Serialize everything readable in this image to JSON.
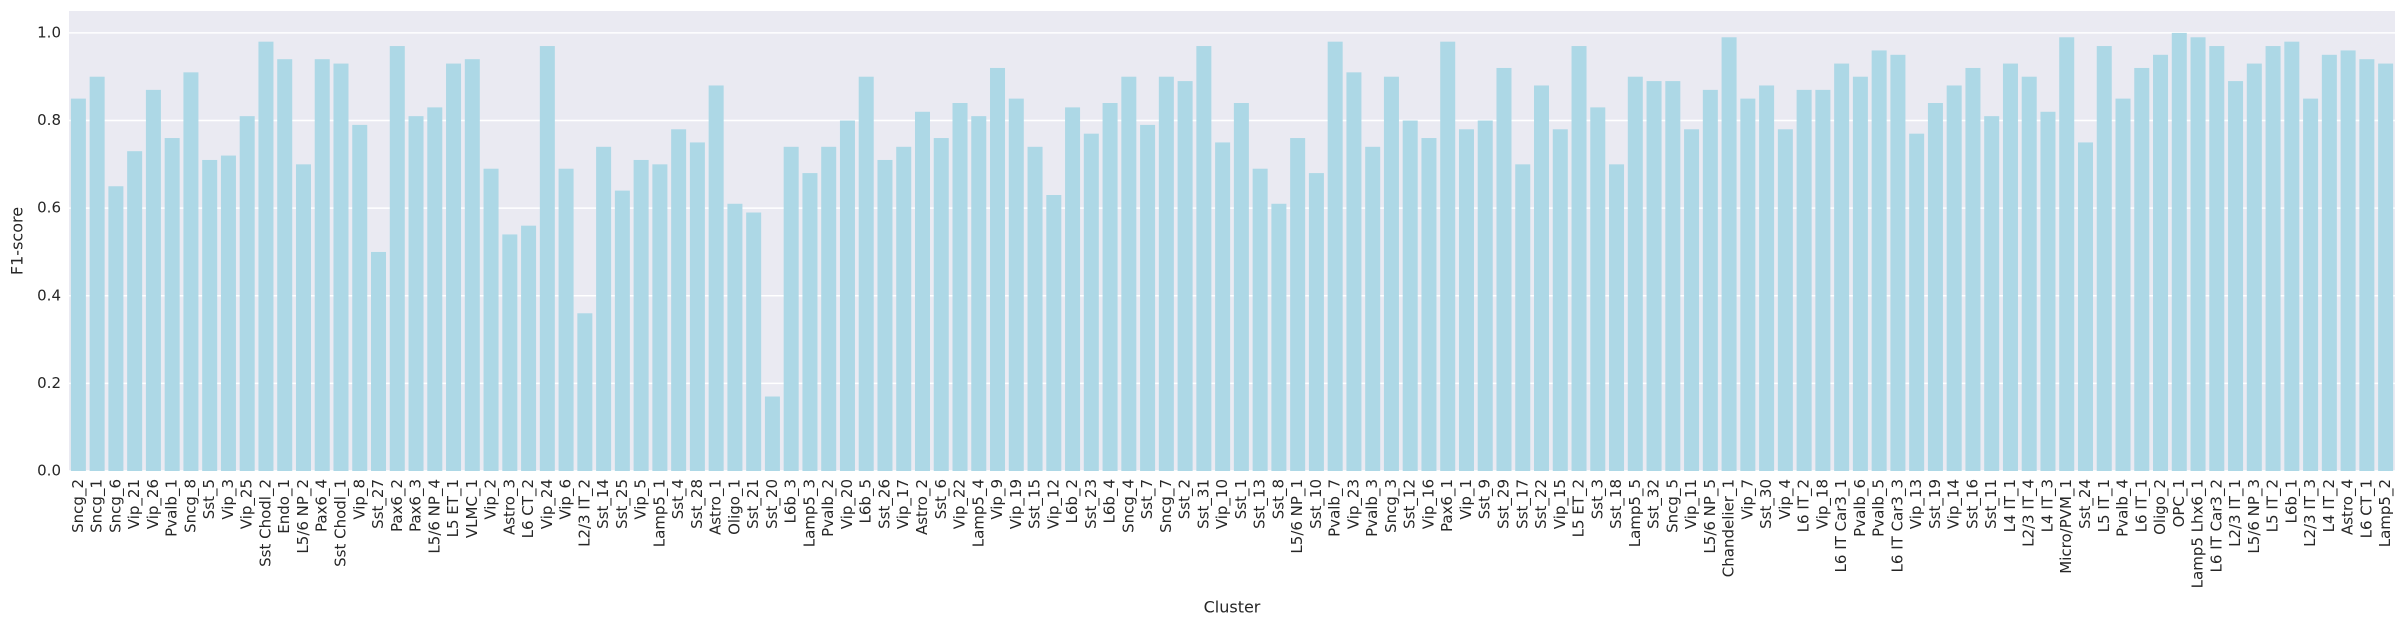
{
  "chart_data": {
    "type": "bar",
    "xlabel": "Cluster",
    "ylabel": "F1-score",
    "color": "#add8e6",
    "grid": true,
    "categories": [
      "Sncg_2",
      "Sncg_1",
      "Sncg_6",
      "Vip_21",
      "Vip_26",
      "Pvalb_1",
      "Sncg_8",
      "Sst_5",
      "Vip_3",
      "Vip_25",
      "Sst Chodl_2",
      "Endo_1",
      "L5/6 NP_2",
      "Pax6_4",
      "Sst Chodl_1",
      "Vip_8",
      "Sst_27",
      "Pax6_2",
      "Pax6_3",
      "L5/6 NP_4",
      "L5 ET_1",
      "VLMC_1",
      "Vip_2",
      "Astro_3",
      "L6 CT_2",
      "Vip_24",
      "Vip_6",
      "L2/3 IT_2",
      "Sst_14",
      "Sst_25",
      "Vip_5",
      "Lamp5_1",
      "Sst_4",
      "Sst_28",
      "Astro_1",
      "Oligo_1",
      "Sst_21",
      "Sst_20",
      "L6b_3",
      "Lamp5_3",
      "Pvalb_2",
      "Vip_20",
      "L6b_5",
      "Sst_26",
      "Vip_17",
      "Astro_2",
      "Sst_6",
      "Vip_22",
      "Lamp5_4",
      "Vip_9",
      "Vip_19",
      "Sst_15",
      "Vip_12",
      "L6b_2",
      "Sst_23",
      "L6b_4",
      "Sncg_4",
      "Sst_7",
      "Sncg_7",
      "Sst_2",
      "Sst_31",
      "Vip_10",
      "Sst_1",
      "Sst_13",
      "Sst_8",
      "L5/6 NP_1",
      "Sst_10",
      "Pvalb_7",
      "Vip_23",
      "Pvalb_3",
      "Sncg_3",
      "Sst_12",
      "Vip_16",
      "Pax6_1",
      "Vip_1",
      "Sst_9",
      "Sst_29",
      "Sst_17",
      "Sst_22",
      "Vip_15",
      "L5 ET_2",
      "Sst_3",
      "Sst_18",
      "Lamp5_5",
      "Sst_32",
      "Sncg_5",
      "Vip_11",
      "L5/6 NP_5",
      "Chandelier_1",
      "Vip_7",
      "Sst_30",
      "Vip_4",
      "L6 IT_2",
      "Vip_18",
      "L6 IT Car3_1",
      "Pvalb_6",
      "Pvalb_5",
      "L6 IT Car3_3",
      "Vip_13",
      "Sst_19",
      "Vip_14",
      "Sst_16",
      "Sst_11",
      "L4 IT_1",
      "L2/3 IT_4",
      "L4 IT_3",
      "Micro/PVM_1",
      "Sst_24",
      "L5 IT_1",
      "Pvalb_4",
      "L6 IT_1",
      "Oligo_2",
      "OPC_1",
      "Lamp5 Lhx6_1",
      "L6 IT Car3_2",
      "L2/3 IT_1",
      "L5/6 NP_3",
      "L5 IT_2",
      "L6b_1",
      "L2/3 IT_3",
      "L4 IT_2",
      "Astro_4",
      "L6 CT_1",
      "Lamp5_2"
    ],
    "values": [
      0.85,
      0.9,
      0.65,
      0.73,
      0.87,
      0.76,
      0.91,
      0.71,
      0.72,
      0.81,
      0.98,
      0.94,
      0.7,
      0.94,
      0.93,
      0.79,
      0.5,
      0.97,
      0.81,
      0.83,
      0.93,
      0.94,
      0.69,
      0.54,
      0.56,
      0.97,
      0.69,
      0.36,
      0.74,
      0.64,
      0.71,
      0.7,
      0.78,
      0.75,
      0.88,
      0.61,
      0.59,
      0.17,
      0.74,
      0.68,
      0.74,
      0.8,
      0.9,
      0.71,
      0.74,
      0.82,
      0.76,
      0.84,
      0.81,
      0.92,
      0.85,
      0.74,
      0.63,
      0.83,
      0.77,
      0.84,
      0.9,
      0.79,
      0.9,
      0.89,
      0.97,
      0.75,
      0.84,
      0.69,
      0.61,
      0.76,
      0.68,
      0.98,
      0.91,
      0.74,
      0.9,
      0.8,
      0.76,
      0.98,
      0.78,
      0.8,
      0.92,
      0.7,
      0.88,
      0.78,
      0.97,
      0.83,
      0.7,
      0.9,
      0.89,
      0.89,
      0.78,
      0.87,
      0.99,
      0.85,
      0.88,
      0.78,
      0.87,
      0.87,
      0.93,
      0.9,
      0.96,
      0.95,
      0.77,
      0.84,
      0.88,
      0.92,
      0.81,
      0.93,
      0.9,
      0.82,
      0.99,
      0.75,
      0.97,
      0.85,
      0.92,
      0.95,
      1.0,
      0.99,
      0.97,
      0.89,
      0.93,
      0.97,
      0.98,
      0.85,
      0.95,
      0.96,
      0.94,
      0.93
    ],
    "ylim": [
      0,
      1.05
    ],
    "yticks": [
      {
        "value": 0,
        "label": "0.0"
      },
      {
        "value": 0.2,
        "label": "0.2"
      },
      {
        "value": 0.4,
        "label": "0.4"
      },
      {
        "value": 0.6,
        "label": "0.6"
      },
      {
        "value": 0.8,
        "label": "0.8"
      },
      {
        "value": 1,
        "label": "1.0"
      }
    ]
  }
}
